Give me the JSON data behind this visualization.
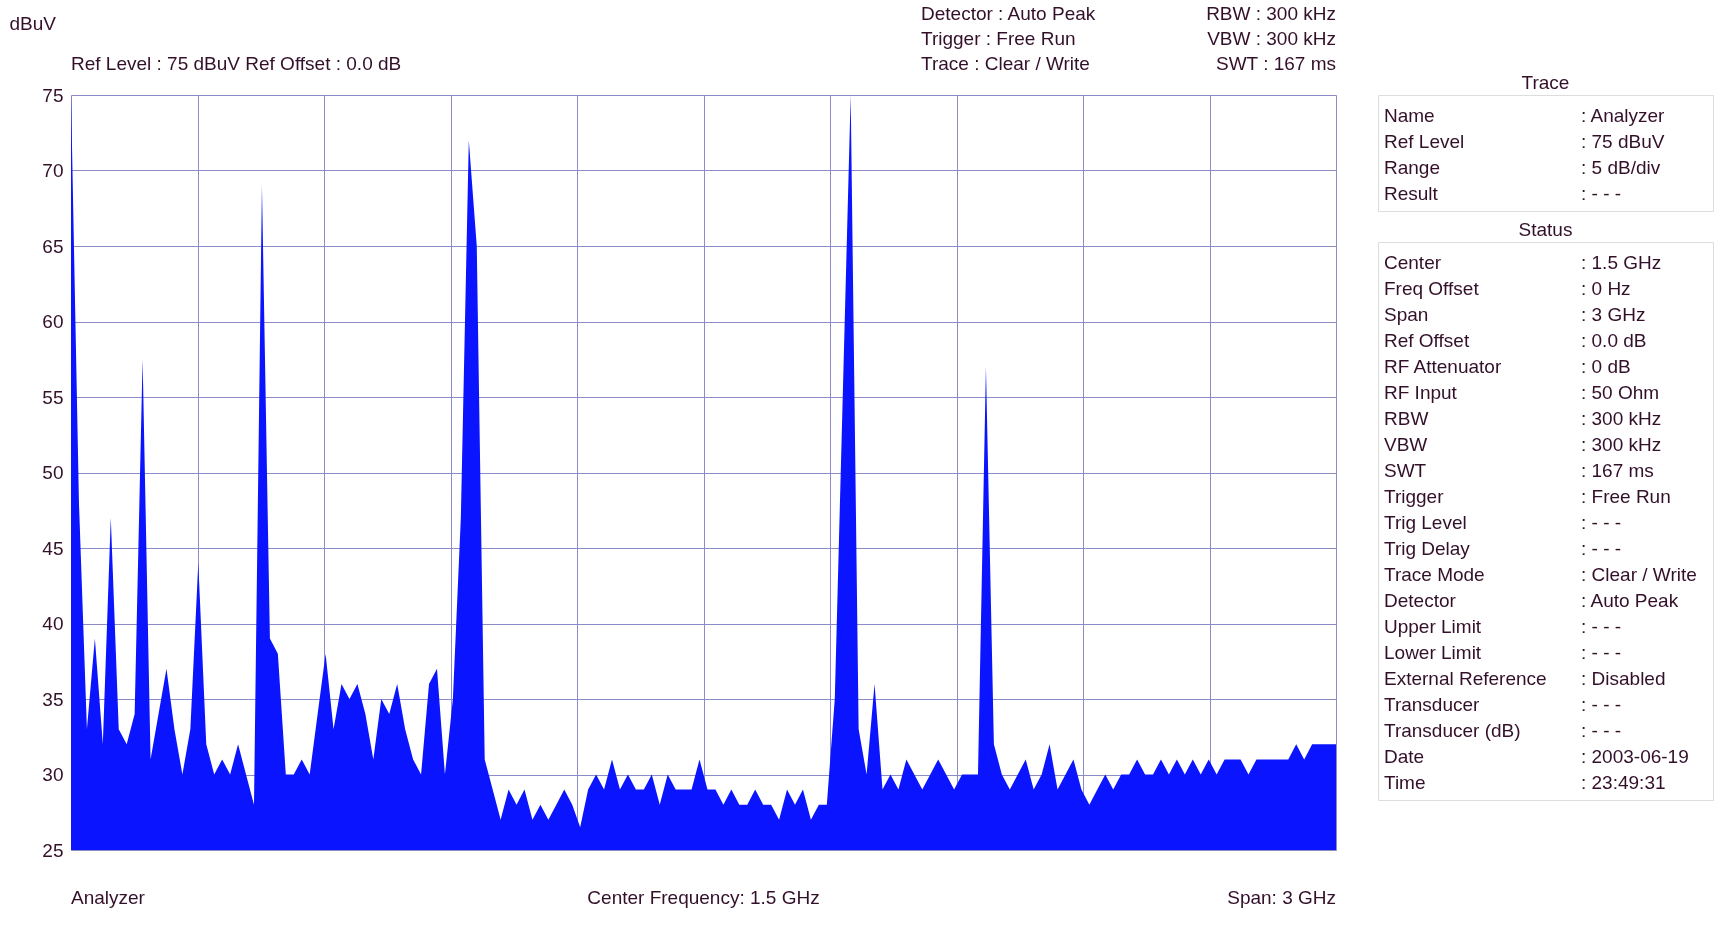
{
  "chart_data": [
    {
      "type": "area",
      "ylabel": "dBuV",
      "subtitle": "Ref Level : 75 dBuV   Ref Offset : 0.0 dB",
      "color": "#0a14ff",
      "grid": true,
      "ylim": [
        25,
        75
      ],
      "yticks": [
        25,
        30,
        35,
        40,
        45,
        50,
        55,
        60,
        65,
        70,
        75
      ],
      "categories": [
        null,
        null,
        null,
        null,
        null,
        null,
        null,
        null,
        null,
        null,
        null,
        null,
        null,
        null,
        null,
        null,
        null,
        null,
        null,
        null,
        null,
        null,
        null,
        null,
        null,
        null,
        null,
        null,
        null,
        null,
        null,
        null,
        null,
        null,
        null,
        null,
        null,
        null,
        null,
        null,
        null,
        null,
        null,
        null,
        null,
        null,
        null,
        null,
        null,
        null,
        null,
        null,
        null,
        null,
        null,
        null,
        null,
        null,
        null,
        null,
        null,
        null,
        null,
        null,
        null,
        null,
        null,
        null,
        null,
        null,
        null,
        null,
        null,
        null,
        null,
        null,
        null,
        null,
        null,
        null,
        null,
        null,
        null,
        null,
        null,
        null,
        null,
        null,
        null,
        null,
        null,
        null,
        null,
        null,
        null,
        null,
        null,
        null,
        null,
        null,
        null,
        null,
        null,
        null,
        null,
        null,
        null,
        null,
        null,
        null,
        null,
        null,
        null,
        null,
        null,
        null,
        null,
        null,
        null,
        null,
        null,
        null,
        null,
        null,
        null,
        null,
        null,
        null,
        null,
        null,
        null,
        null,
        null,
        null,
        null,
        null,
        null,
        null,
        null,
        null,
        null,
        null,
        null,
        null,
        null,
        null,
        null,
        null,
        null,
        null,
        null,
        null,
        null,
        null,
        null,
        null,
        null,
        null,
        null,
        null
      ],
      "values": [
        75,
        48,
        33,
        39,
        32,
        47,
        33,
        32,
        34,
        57.5,
        31,
        34,
        37,
        33,
        30,
        33,
        44,
        32,
        30,
        31,
        30,
        32,
        30,
        28,
        69,
        39,
        38,
        30,
        30,
        31,
        30,
        34,
        38,
        33,
        36,
        35,
        36,
        34,
        31,
        35,
        34,
        36,
        33,
        31,
        30,
        36,
        37,
        30,
        35,
        47,
        72,
        65,
        31,
        29,
        27,
        29,
        28,
        29,
        27,
        28,
        27,
        28,
        29,
        28,
        26.5,
        29,
        30,
        29,
        31,
        29,
        30,
        29,
        29,
        30,
        28,
        30,
        29,
        29,
        29,
        31,
        29,
        29,
        28,
        29,
        28,
        28,
        29,
        28,
        28,
        27,
        29,
        28,
        29,
        27,
        28,
        28,
        35,
        55,
        75,
        33,
        30,
        36,
        29,
        30,
        29,
        31,
        30,
        29,
        30,
        31,
        30,
        29,
        30,
        30,
        30,
        57,
        32,
        30,
        29,
        30,
        31,
        29,
        30,
        32,
        29,
        30,
        31,
        29,
        28,
        29,
        30,
        29,
        30,
        30,
        31,
        30,
        30,
        31,
        30,
        31,
        30,
        31,
        30,
        31,
        30,
        31,
        31,
        31,
        30,
        31,
        31,
        31,
        31,
        31,
        32,
        31,
        32,
        32,
        32,
        32
      ],
      "annotations": [
        "Detector : Auto Peak",
        "Trigger   : Free Run",
        "Trace     : Clear / Write",
        "RBW : 300 kHz",
        "VBW : 300 kHz",
        "SWT : 167 ms",
        "Analyzer",
        "Center Frequency:  1.5 GHz",
        "Span:  3 GHz"
      ]
    },
    {
      "type": "other",
      "title": "Trace",
      "annotations": [
        "Name",
        ": Analyzer",
        "Ref Level",
        ":  75    dBuV",
        "Range",
        ": 5 dB/div",
        "Result",
        ": - - -"
      ]
    },
    {
      "type": "other",
      "title": "Status",
      "annotations": [
        "Center",
        ":    1.5  GHz",
        "Freq Offset",
        ":     0    Hz",
        "Span",
        ":     3    GHz",
        "Ref Offset",
        ":    0.0  dB",
        "RF Attenuator",
        ":     0    dB",
        "RF Input",
        ":    50   Ohm",
        "RBW",
        ": 300   kHz",
        "VBW",
        ": 300   kHz",
        "SWT",
        ": 167   ms",
        "Trigger",
        ": Free Run",
        "Trig Level",
        ": - - -",
        "Trig Delay",
        ": - - -",
        "Trace Mode",
        ": Clear / Write",
        "Detector",
        ": Auto Peak",
        "Upper Limit",
        ": - - -",
        "Lower Limit",
        ": - - -",
        "External Reference",
        ": Disabled",
        "Transducer",
        ": - - -",
        "Transducer (dB)",
        ": - - -",
        "Date",
        ": 2003-06-19",
        "Time",
        ": 23:49:31"
      ]
    }
  ]
}
